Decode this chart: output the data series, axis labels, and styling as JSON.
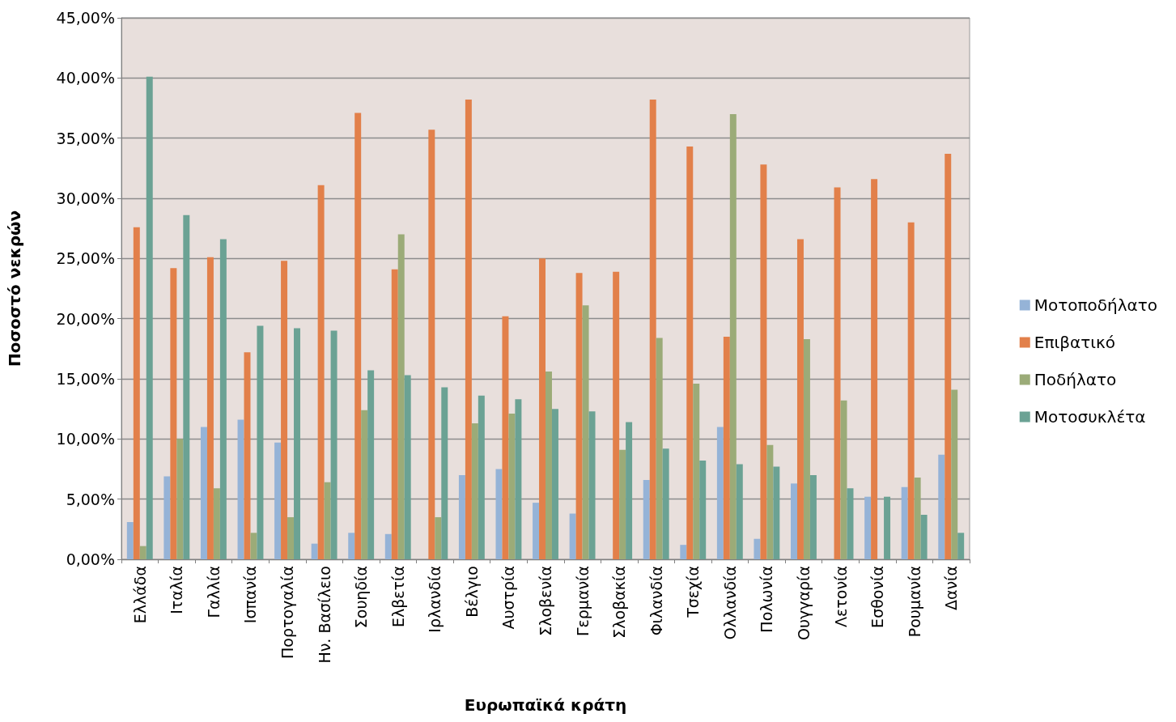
{
  "chart_data": {
    "type": "bar",
    "xlabel": "Ευρωπαϊκά κράτη",
    "ylabel": "Ποσοστό νεκρών",
    "categories": [
      "Ελλάδα",
      "Ιταλία",
      "Γαλλία",
      "Ισπανία",
      "Πορτογαλία",
      "Ην. Βασίλειο",
      "Σουηδία",
      "Ελβετία",
      "Ιρλανδία",
      "Βέλγιο",
      "Αυστρία",
      "Σλοβενία",
      "Γερμανία",
      "Σλοβακία",
      "Φιλανδία",
      "Τσεχία",
      "Ολλανδία",
      "Πολωνία",
      "Ουγγαρία",
      "Λετονία",
      "Εσθονία",
      "Ρουμανία",
      "Δανία"
    ],
    "series": [
      {
        "name": "Μοτοποδήλατο",
        "color": "#95b3d7",
        "values": [
          3.1,
          6.9,
          11.0,
          11.6,
          9.7,
          1.3,
          2.2,
          2.1,
          0,
          7.0,
          7.5,
          4.7,
          3.8,
          0,
          6.6,
          1.2,
          11.0,
          1.7,
          6.3,
          0,
          5.2,
          6.0,
          8.7
        ]
      },
      {
        "name": "Επιβατικό",
        "color": "#e2804a",
        "values": [
          27.6,
          24.2,
          25.1,
          17.2,
          24.8,
          31.1,
          37.1,
          24.1,
          35.7,
          38.2,
          20.2,
          25.0,
          23.8,
          23.9,
          38.2,
          34.3,
          18.5,
          32.8,
          26.6,
          30.9,
          31.6,
          28.0,
          33.7
        ]
      },
      {
        "name": "Ποδήλατο",
        "color": "#9bab78",
        "values": [
          1.1,
          10.0,
          5.9,
          2.2,
          3.5,
          6.4,
          12.4,
          27.0,
          3.5,
          11.3,
          12.1,
          15.6,
          21.1,
          9.1,
          18.4,
          14.6,
          37.0,
          9.5,
          18.3,
          13.2,
          0,
          6.8,
          14.1
        ]
      },
      {
        "name": "Μοτοσυκλέτα",
        "color": "#6ba294",
        "values": [
          40.1,
          28.6,
          26.6,
          19.4,
          19.2,
          19.0,
          15.7,
          15.3,
          14.3,
          13.6,
          13.3,
          12.5,
          12.3,
          11.4,
          9.2,
          8.2,
          7.9,
          7.7,
          7.0,
          5.9,
          5.2,
          3.7,
          2.2
        ]
      }
    ],
    "ylim": [
      0,
      45
    ],
    "yticks": [
      {
        "value": 0,
        "label": "0,00%"
      },
      {
        "value": 5,
        "label": "5,00%"
      },
      {
        "value": 10,
        "label": "10,00%"
      },
      {
        "value": 15,
        "label": "15,00%"
      },
      {
        "value": 20,
        "label": "20,00%"
      },
      {
        "value": 25,
        "label": "25,00%"
      },
      {
        "value": 30,
        "label": "30,00%"
      },
      {
        "value": 35,
        "label": "35,00%"
      },
      {
        "value": 40,
        "label": "40,00%"
      },
      {
        "value": 45,
        "label": "45,00%"
      }
    ],
    "grid": "y",
    "legend": "right"
  }
}
